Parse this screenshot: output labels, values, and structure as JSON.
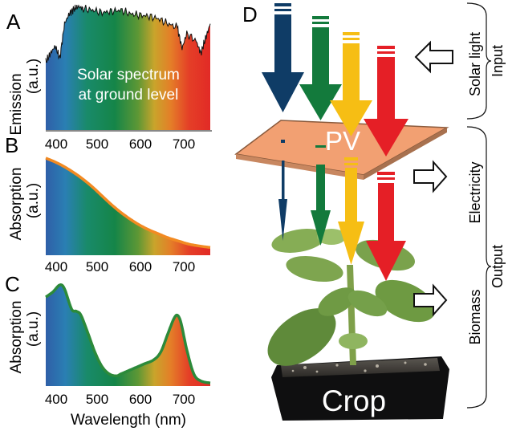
{
  "panels": {
    "a": {
      "letter": "A",
      "ylabel_line1": "Emission",
      "ylabel_line2": "(a.u.)",
      "caption_line1": "Solar spectrum",
      "caption_line2": "at ground level"
    },
    "b": {
      "letter": "B",
      "ylabel_line1": "Absorption",
      "ylabel_line2": "(a.u.)"
    },
    "c": {
      "letter": "C",
      "ylabel_line1": "Absorption",
      "ylabel_line2": "(a.u.)"
    },
    "d": {
      "letter": "D",
      "pv_label": "PV",
      "crop_label": "Crop",
      "bracket_input": "Input",
      "bracket_output": "Output",
      "label_solar": "Solar light",
      "label_electricity": "Electricity",
      "label_biomass": "Biomass"
    }
  },
  "x_axis": {
    "ticks": [
      "400",
      "500",
      "600",
      "700"
    ],
    "tick_values": [
      400,
      500,
      600,
      700
    ],
    "range": [
      400,
      750
    ],
    "xlabel": "Wavelength (nm)"
  },
  "spectrum_colors": {
    "violet": "#3c5aa8",
    "blue": "#2e7bb8",
    "teal": "#1f8a6c",
    "green": "#15874a",
    "olive": "#6a9a3a",
    "yellow": "#d9a629",
    "orange": "#e36c26",
    "red": "#e22d27"
  },
  "chart_data": [
    {
      "type": "area",
      "panel": "A",
      "title": "",
      "ylabel": "Emission (a.u.)",
      "xlabel": "",
      "x": [
        400,
        410,
        420,
        430,
        440,
        450,
        460,
        470,
        480,
        500,
        520,
        540,
        560,
        580,
        600,
        620,
        640,
        660,
        680,
        690,
        700,
        720,
        730,
        740,
        750
      ],
      "y": [
        0.55,
        0.62,
        0.68,
        0.58,
        0.86,
        0.94,
        0.98,
        1.0,
        0.98,
        0.97,
        0.95,
        0.96,
        0.97,
        0.94,
        0.93,
        0.92,
        0.9,
        0.86,
        0.83,
        0.66,
        0.78,
        0.72,
        0.62,
        0.74,
        0.86
      ],
      "xlim": [
        400,
        750
      ]
    },
    {
      "type": "area",
      "panel": "B",
      "title": "",
      "ylabel": "Absorption (a.u.)",
      "xlabel": "",
      "x": [
        400,
        420,
        440,
        460,
        480,
        500,
        520,
        540,
        560,
        580,
        600,
        620,
        640,
        660,
        680,
        700,
        720,
        750
      ],
      "y": [
        1.0,
        0.96,
        0.91,
        0.85,
        0.78,
        0.7,
        0.61,
        0.52,
        0.44,
        0.37,
        0.31,
        0.26,
        0.22,
        0.18,
        0.15,
        0.12,
        0.1,
        0.08
      ],
      "xlim": [
        400,
        750
      ]
    },
    {
      "type": "area",
      "panel": "C",
      "title": "",
      "ylabel": "Absorption (a.u.)",
      "xlabel": "Wavelength (nm)",
      "x": [
        400,
        415,
        430,
        440,
        455,
        465,
        475,
        490,
        505,
        520,
        535,
        550,
        560,
        575,
        590,
        610,
        630,
        645,
        660,
        672,
        680,
        688,
        700,
        715,
        730,
        750
      ],
      "y": [
        0.88,
        0.93,
        1.0,
        0.96,
        0.76,
        0.74,
        0.7,
        0.52,
        0.33,
        0.19,
        0.12,
        0.1,
        0.12,
        0.15,
        0.18,
        0.22,
        0.26,
        0.34,
        0.52,
        0.66,
        0.7,
        0.62,
        0.36,
        0.12,
        0.05,
        0.03
      ],
      "xlim": [
        400,
        750
      ]
    }
  ],
  "arrow_colors": {
    "blue": "#0f3c66",
    "green": "#137a3c",
    "yellow": "#f6be14",
    "red": "#e51f26"
  },
  "icons": [
    "input-arrow-icon",
    "output-arrow-icon"
  ]
}
